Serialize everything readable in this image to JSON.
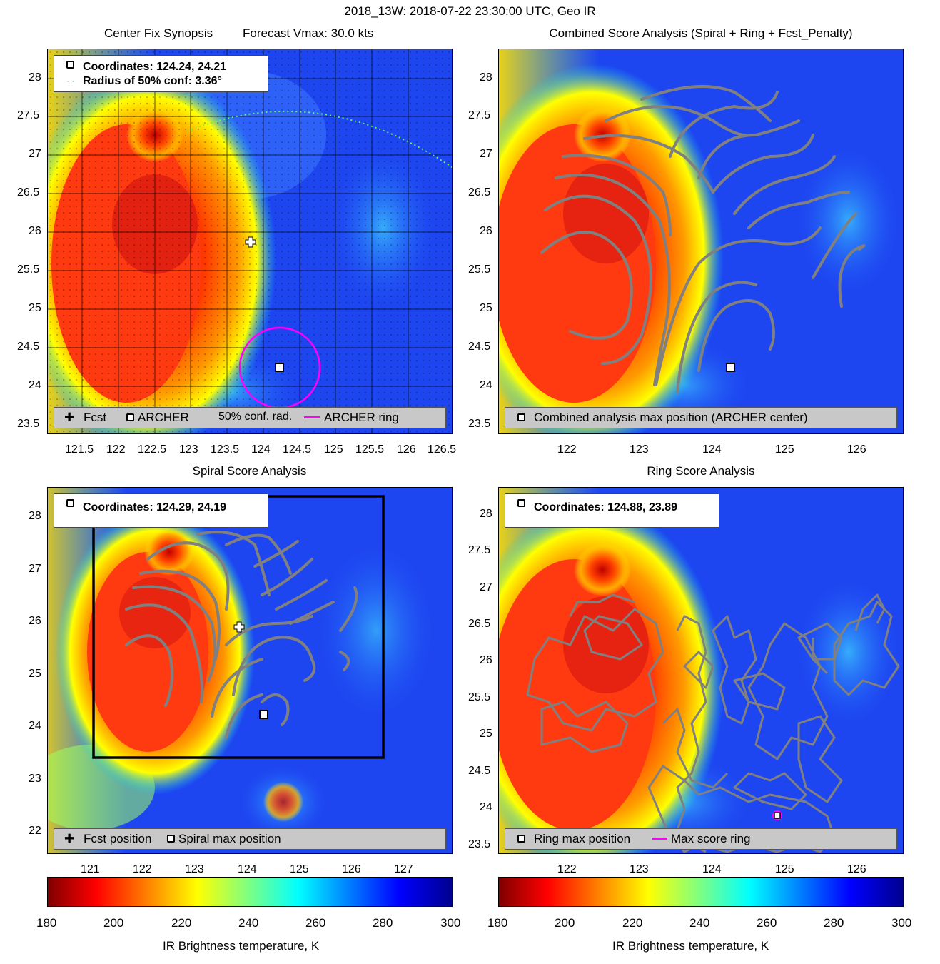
{
  "suptitle": "2018_13W: 2018-07-22 23:30:00 UTC, Geo IR",
  "panels": {
    "center_fix": {
      "title_left": "Center Fix Synopsis",
      "title_right": "Forecast Vmax: 30.0 kts",
      "coords_line": "Coordinates: 124.24, 24.21",
      "radius_line": "Radius of 50% conf: 3.36°",
      "legend": {
        "fcst": "Fcst",
        "archer": "ARCHER",
        "conf": "50% conf. rad.",
        "ring": "ARCHER ring"
      }
    },
    "combined": {
      "title": "Combined Score Analysis (Spiral + Ring + Fcst_Penalty)",
      "legend": {
        "max": "Combined analysis max position (ARCHER center)"
      }
    },
    "spiral": {
      "title": "Spiral Score Analysis",
      "coords_line": "Coordinates: 124.29, 24.19",
      "legend": {
        "fcst": "Fcst position",
        "max": "Spiral max position"
      }
    },
    "ring": {
      "title": "Ring Score Analysis",
      "coords_line": "Coordinates: 124.88, 23.89",
      "legend": {
        "max": "Ring max position",
        "ring": "Max score ring"
      }
    }
  },
  "colorbar": {
    "label": "IR Brightness temperature, K",
    "ticks": [
      "180",
      "200",
      "220",
      "240",
      "260",
      "280",
      "300"
    ],
    "colormap": "jet",
    "range": [
      180,
      300
    ]
  },
  "chart_data": [
    {
      "type": "heatmap",
      "title": "Center Fix Synopsis",
      "xlabel": "",
      "ylabel": "",
      "x_ticks": [
        "121.5",
        "122",
        "122.5",
        "123",
        "123.5",
        "124",
        "124.5",
        "125",
        "125.5",
        "126",
        "126.5"
      ],
      "y_ticks": [
        "23.5",
        "24",
        "24.5",
        "25",
        "25.5",
        "26",
        "26.5",
        "27",
        "27.5",
        "28"
      ],
      "xlim": [
        120.95,
        126.5
      ],
      "ylim": [
        23.3,
        28.3
      ],
      "grid": true,
      "points": [
        {
          "name": "Fcst",
          "x": 123.85,
          "y": 25.87
        },
        {
          "name": "ARCHER",
          "x": 124.24,
          "y": 24.21
        }
      ],
      "archer_ring_radius_deg": 0.55,
      "conf_radius_deg": 3.36,
      "colors": {
        "ring": "#ff00ff",
        "conf": "#00ff00"
      }
    },
    {
      "type": "heatmap",
      "title": "Combined Score Analysis (Spiral + Ring + Fcst_Penalty)",
      "x_ticks": [
        "122",
        "123",
        "124",
        "125",
        "126"
      ],
      "y_ticks": [
        "23.5",
        "24",
        "24.5",
        "25",
        "25.5",
        "26",
        "26.5",
        "27",
        "27.5",
        "28"
      ],
      "xlim": [
        121.0,
        126.6
      ],
      "ylim": [
        23.3,
        28.3
      ],
      "points": [
        {
          "name": "ARCHER center",
          "x": 124.24,
          "y": 24.21
        }
      ],
      "contour_color": "#808080"
    },
    {
      "type": "heatmap",
      "title": "Spiral Score Analysis",
      "x_ticks": [
        "121",
        "122",
        "123",
        "124",
        "125",
        "126",
        "127"
      ],
      "y_ticks": [
        "22",
        "23",
        "24",
        "25",
        "26",
        "27",
        "28"
      ],
      "xlim": [
        119.7,
        127.5
      ],
      "ylim": [
        21.6,
        28.6
      ],
      "points": [
        {
          "name": "Fcst position",
          "x": 123.85,
          "y": 25.87
        },
        {
          "name": "Spiral max position",
          "x": 124.29,
          "y": 24.19
        }
      ],
      "box": {
        "x": [
          120.5,
          126.1
        ],
        "y": [
          23.4,
          28.4
        ]
      },
      "contour_color": "#808080"
    },
    {
      "type": "heatmap",
      "title": "Ring Score Analysis",
      "x_ticks": [
        "122",
        "123",
        "124",
        "125",
        "126"
      ],
      "y_ticks": [
        "23.5",
        "24",
        "24.5",
        "25",
        "25.5",
        "26",
        "26.5",
        "27",
        "27.5",
        "28"
      ],
      "xlim": [
        121.0,
        126.6
      ],
      "ylim": [
        23.3,
        28.3
      ],
      "points": [
        {
          "name": "Ring max position",
          "x": 124.88,
          "y": 23.89
        }
      ],
      "ring_radius_deg": 0.05,
      "contour_color": "#808080"
    }
  ]
}
